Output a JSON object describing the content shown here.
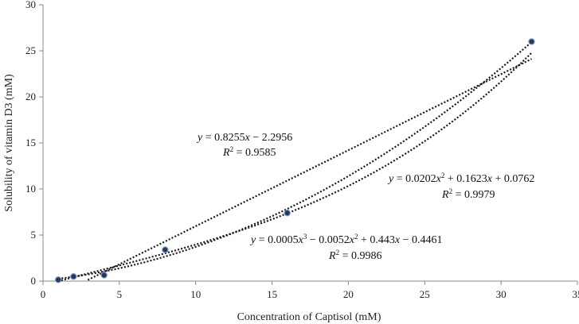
{
  "chart_data": {
    "type": "scatter",
    "title": "",
    "xlabel": "Concentration of Captisol (mM)",
    "ylabel": "Solubility of vitamin D3 (mM)",
    "xlim": [
      0,
      35
    ],
    "ylim": [
      0,
      30
    ],
    "xticks": [
      "0",
      "5",
      "10",
      "15",
      "20",
      "25",
      "30",
      "35"
    ],
    "yticks": [
      "0",
      "5",
      "10",
      "15",
      "20",
      "25",
      "30"
    ],
    "points": {
      "x": [
        1,
        2,
        4,
        8,
        16,
        32
      ],
      "y": [
        0.15,
        0.5,
        0.65,
        3.4,
        7.4,
        26.0
      ]
    },
    "colors": {
      "marker_fill": "#1f3864",
      "marker_stroke": "#8497b0",
      "trend": "#1a1a1a",
      "axis": "#888888"
    },
    "trendlines": [
      {
        "name": "linear",
        "coefficients": [
          -2.2956,
          0.8255
        ],
        "x_range": [
          1,
          32
        ],
        "eq_prefix": "y",
        "eq_body": " = 0.8255",
        "eq_x": "x",
        "eq_tail": " − 2.2956",
        "r2_label": "R",
        "r2_value": " = 0.9585"
      },
      {
        "name": "quadratic",
        "coefficients": [
          0.0762,
          0.1623,
          0.0202
        ],
        "x_range": [
          1,
          32
        ],
        "eq_prefix": "y",
        "eq_body": " = 0.0202",
        "eq_x": "x",
        "eq_sq": "2",
        "eq_mid": " + 0.1623",
        "eq_x2": "x",
        "eq_tail": " + 0.0762",
        "r2_label": "R",
        "r2_value": " = 0.9979"
      },
      {
        "name": "cubic",
        "coefficients": [
          -0.4461,
          0.443,
          -0.0052,
          0.0005
        ],
        "x_range": [
          1,
          32
        ],
        "eq_prefix": "y",
        "eq_body": " = 0.0005",
        "eq_x": "x",
        "eq_cube": "3",
        "eq_mid1": " − 0.0052",
        "eq_x2": "x",
        "eq_sq": "2",
        "eq_mid2": " + 0.443",
        "eq_x3": "x",
        "eq_tail": " − 0.4461",
        "r2_label": "R",
        "r2_value": " = 0.9986"
      }
    ]
  }
}
